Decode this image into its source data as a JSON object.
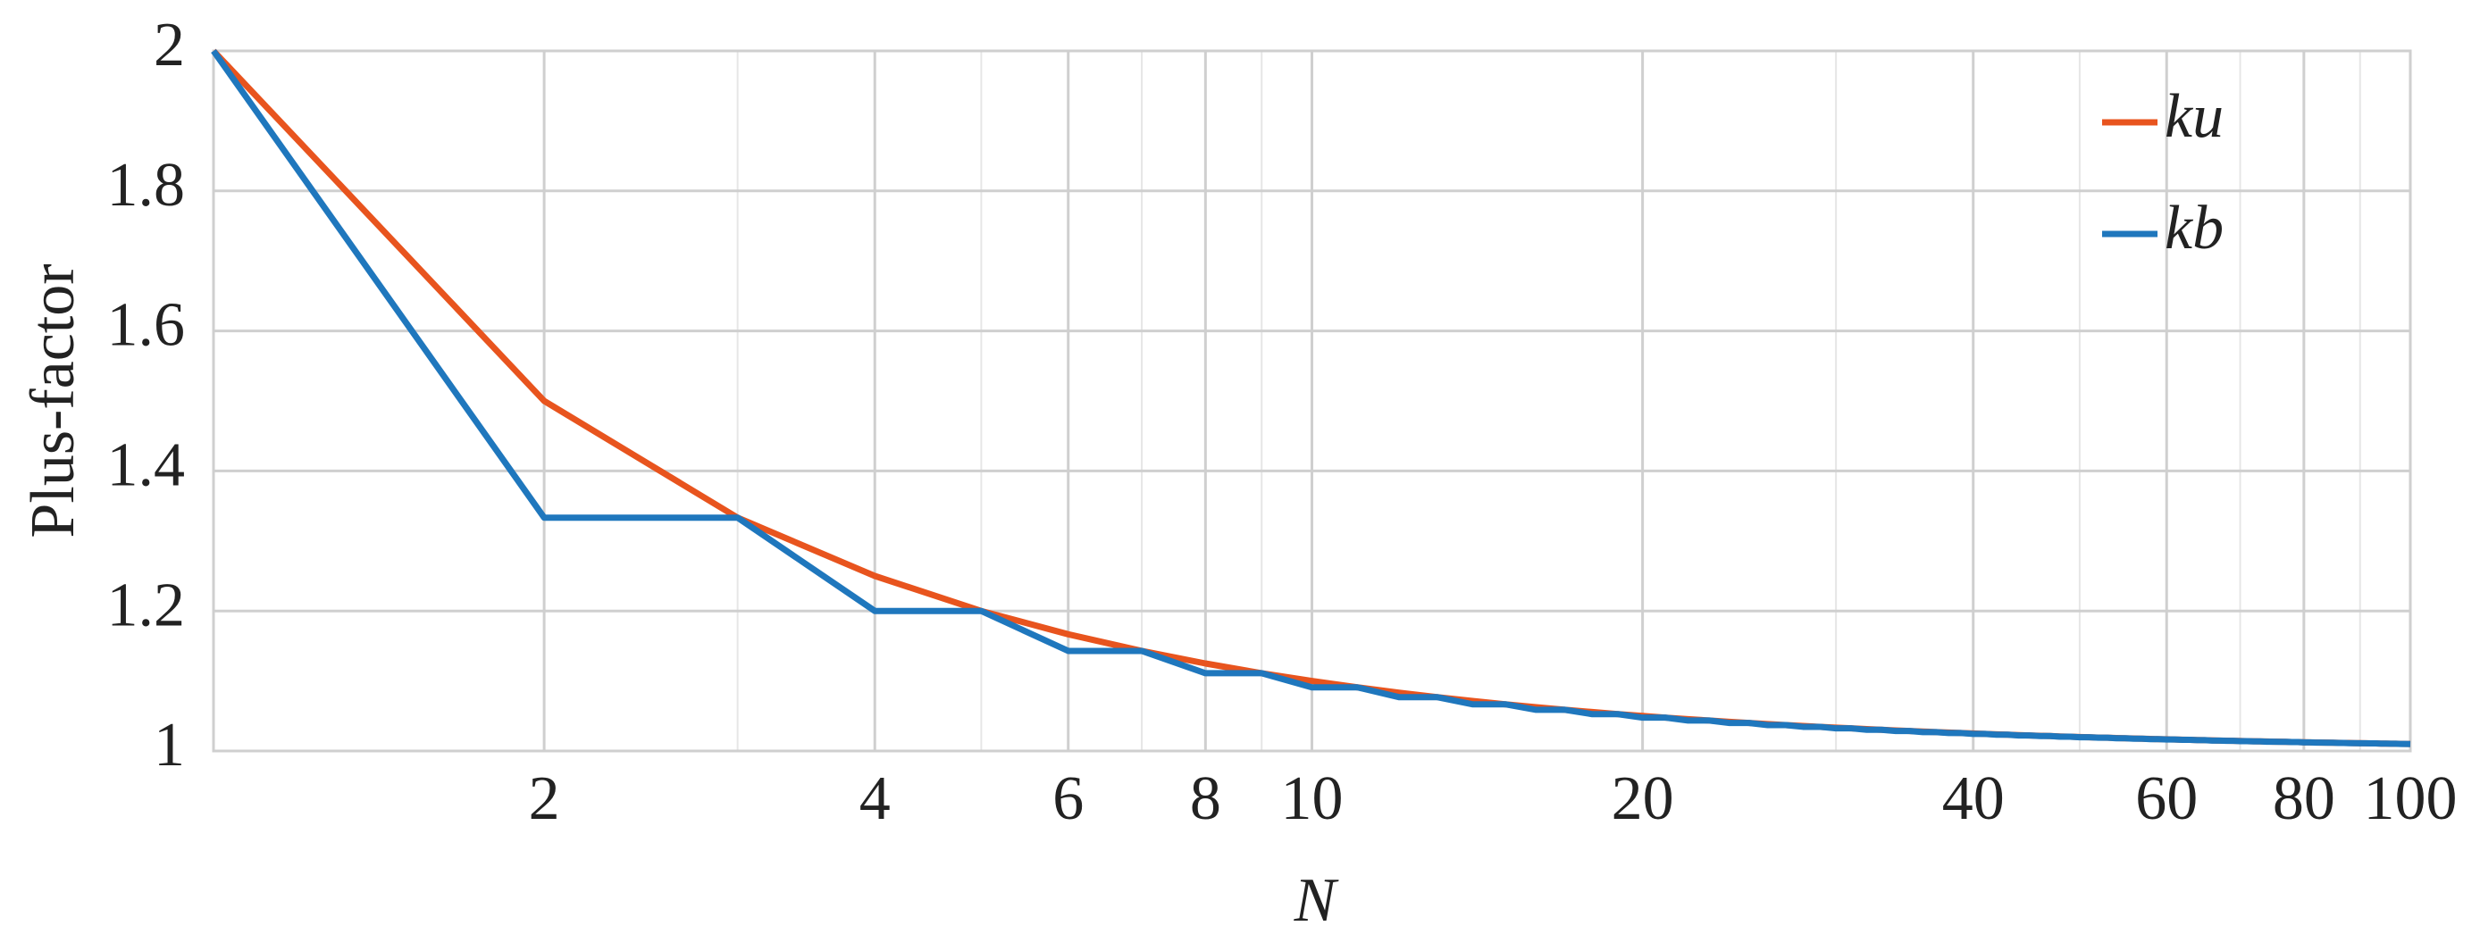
{
  "chart_data": {
    "type": "line",
    "xlabel": "N",
    "ylabel": "Plus-factor",
    "xscale": "log",
    "grid": true,
    "legend": "upper right",
    "xlim": [
      1,
      100
    ],
    "ylim": [
      1,
      2
    ],
    "xticks": [
      2,
      4,
      6,
      8,
      10,
      20,
      40,
      60,
      80,
      100
    ],
    "xminorticks": [
      3,
      5,
      7,
      9,
      30,
      50,
      70,
      90
    ],
    "yticks": [
      1,
      1.2,
      1.4,
      1.6,
      1.8,
      2
    ],
    "x": [
      1,
      2,
      3,
      4,
      5,
      6,
      7,
      8,
      9,
      10,
      11,
      12,
      13,
      14,
      15,
      16,
      17,
      18,
      19,
      20,
      21,
      22,
      23,
      24,
      25,
      26,
      27,
      28,
      29,
      30,
      31,
      32,
      33,
      34,
      35,
      36,
      37,
      38,
      39,
      40,
      41,
      42,
      43,
      44,
      45,
      46,
      47,
      48,
      49,
      50,
      51,
      52,
      53,
      54,
      55,
      56,
      57,
      58,
      59,
      60,
      61,
      62,
      63,
      64,
      65,
      66,
      67,
      68,
      69,
      70,
      71,
      72,
      73,
      74,
      75,
      76,
      77,
      78,
      79,
      80,
      81,
      82,
      83,
      84,
      85,
      86,
      87,
      88,
      89,
      90,
      91,
      92,
      93,
      94,
      95,
      96,
      97,
      98,
      99,
      100
    ],
    "series": [
      {
        "name": "ku",
        "color": "#e8541e",
        "values": [
          2,
          1.5,
          1.3333,
          1.25,
          1.2,
          1.1667,
          1.1429,
          1.125,
          1.1111,
          1.1,
          1.0909,
          1.0833,
          1.0769,
          1.0714,
          1.0667,
          1.0625,
          1.0588,
          1.0556,
          1.0526,
          1.05,
          1.0476,
          1.0455,
          1.0435,
          1.0417,
          1.04,
          1.0385,
          1.037,
          1.0357,
          1.0345,
          1.0333,
          1.0323,
          1.0313,
          1.0303,
          1.0294,
          1.0286,
          1.0278,
          1.027,
          1.0263,
          1.0256,
          1.025,
          1.0244,
          1.0238,
          1.0233,
          1.0227,
          1.0222,
          1.0217,
          1.0213,
          1.0208,
          1.0204,
          1.02,
          1.0196,
          1.0192,
          1.0189,
          1.0185,
          1.0182,
          1.0179,
          1.0175,
          1.0172,
          1.0169,
          1.0167,
          1.0164,
          1.0161,
          1.0159,
          1.0156,
          1.0154,
          1.0152,
          1.0149,
          1.0147,
          1.0145,
          1.0143,
          1.0141,
          1.0139,
          1.0137,
          1.0135,
          1.0133,
          1.0132,
          1.013,
          1.0128,
          1.0127,
          1.0125,
          1.0123,
          1.0122,
          1.012,
          1.0119,
          1.0118,
          1.0116,
          1.0115,
          1.0114,
          1.0112,
          1.0111,
          1.011,
          1.0109,
          1.0108,
          1.0106,
          1.0105,
          1.0104,
          1.0103,
          1.0102,
          1.0101,
          1.01
        ]
      },
      {
        "name": "kb",
        "color": "#1f77bd",
        "values": [
          2,
          1.3333,
          1.3333,
          1.2,
          1.2,
          1.1429,
          1.1429,
          1.1111,
          1.1111,
          1.0909,
          1.0909,
          1.0769,
          1.0769,
          1.0667,
          1.0667,
          1.0588,
          1.0588,
          1.0526,
          1.0526,
          1.0476,
          1.0476,
          1.0435,
          1.0435,
          1.04,
          1.04,
          1.037,
          1.037,
          1.0345,
          1.0345,
          1.0323,
          1.0323,
          1.0303,
          1.0303,
          1.0286,
          1.0286,
          1.027,
          1.027,
          1.0256,
          1.0256,
          1.0244,
          1.0244,
          1.0233,
          1.0233,
          1.0222,
          1.0222,
          1.0213,
          1.0213,
          1.0204,
          1.0204,
          1.0196,
          1.0196,
          1.0189,
          1.0189,
          1.0182,
          1.0182,
          1.0175,
          1.0175,
          1.0169,
          1.0169,
          1.0164,
          1.0164,
          1.0159,
          1.0159,
          1.0154,
          1.0154,
          1.0149,
          1.0149,
          1.0145,
          1.0145,
          1.0141,
          1.0141,
          1.0137,
          1.0137,
          1.0133,
          1.0133,
          1.013,
          1.013,
          1.0127,
          1.0127,
          1.0123,
          1.0123,
          1.012,
          1.012,
          1.0118,
          1.0118,
          1.0115,
          1.0115,
          1.0112,
          1.0112,
          1.011,
          1.011,
          1.0108,
          1.0108,
          1.0105,
          1.0105,
          1.0103,
          1.0103,
          1.0101,
          1.0101,
          1.0099
        ]
      }
    ]
  }
}
